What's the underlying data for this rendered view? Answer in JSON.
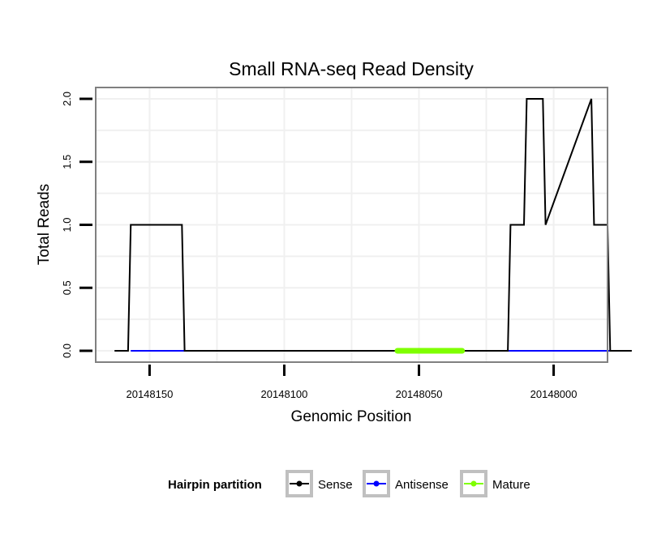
{
  "chart_data": {
    "type": "line",
    "title": "Small RNA-seq Read Density",
    "xlabel": "Genomic Position",
    "ylabel": "Total Reads",
    "x_reversed": true,
    "xlim": [
      20148170,
      20147980
    ],
    "ylim": [
      -0.09,
      2.09
    ],
    "x_ticks": [
      20148150,
      20148100,
      20148050,
      20148000
    ],
    "x_tick_labels": [
      "20148150",
      "20148100",
      "20148050",
      "20148000"
    ],
    "y_ticks": [
      0.0,
      0.5,
      1.0,
      1.5,
      2.0
    ],
    "y_tick_labels": [
      "0.0",
      "0.5",
      "1.0",
      "1.5",
      "2.0"
    ],
    "grid": true,
    "legend_position": "bottom",
    "legend_title": "Hairpin partition",
    "series": [
      {
        "name": "Sense",
        "color": "#000000",
        "x": [
          20148163,
          20148158,
          20148157,
          20148138,
          20148137,
          20148116,
          20148102,
          20148070,
          20148041,
          20148017,
          20148016,
          20148011,
          20148010,
          20148004,
          20148003,
          20147986,
          20147985,
          20147980,
          20147979,
          20147975,
          20147974,
          20147971
        ],
        "values": [
          0,
          0,
          1,
          1,
          0,
          0,
          0,
          0,
          0,
          0,
          1,
          1,
          2,
          2,
          1,
          2,
          1,
          1,
          0,
          0,
          0,
          0
        ]
      },
      {
        "name": "Antisense",
        "color": "#0000ff",
        "x": [
          20148157,
          20148137,
          20148016,
          20147979
        ],
        "values": [
          0,
          0,
          0,
          0
        ]
      },
      {
        "name": "Mature",
        "color": "#7fff00",
        "x": [
          20148058,
          20148034
        ],
        "values": [
          0,
          0
        ]
      }
    ]
  }
}
